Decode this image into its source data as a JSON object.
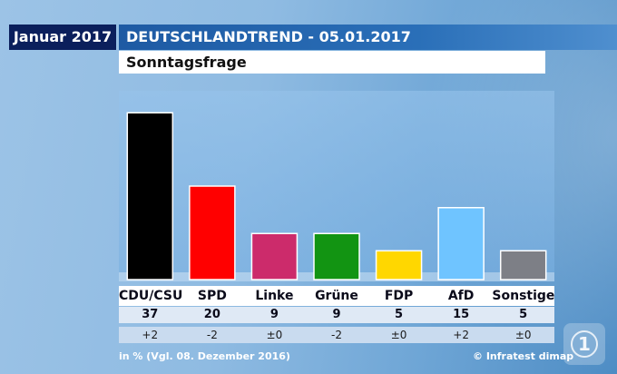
{
  "header": {
    "month": "Januar 2017",
    "title": "DEUTSCHLANDTREND - 05.01.2017",
    "subtitle": "Sonntagsfrage"
  },
  "chart_data": {
    "type": "bar",
    "categories": [
      "CDU/CSU",
      "SPD",
      "Linke",
      "Grüne",
      "FDP",
      "AfD",
      "Sonstige"
    ],
    "values": [
      37,
      20,
      9,
      9,
      5,
      15,
      5
    ],
    "changes": [
      "+2",
      "-2",
      "±0",
      "-2",
      "±0",
      "+2",
      "±0"
    ],
    "colors": [
      "#000000",
      "#ff0000",
      "#cc2b6b",
      "#129412",
      "#ffd700",
      "#6fc4ff",
      "#7d7f86"
    ],
    "ylim": [
      0,
      40
    ],
    "title": "Sonntagsfrage",
    "xlabel": "",
    "ylabel": ""
  },
  "footer": {
    "note": "in % (Vgl. 08. Dezember 2016)",
    "source": "© Infratest dimap"
  },
  "logo": {
    "icon": "ard-logo-icon",
    "glyph": "1"
  }
}
